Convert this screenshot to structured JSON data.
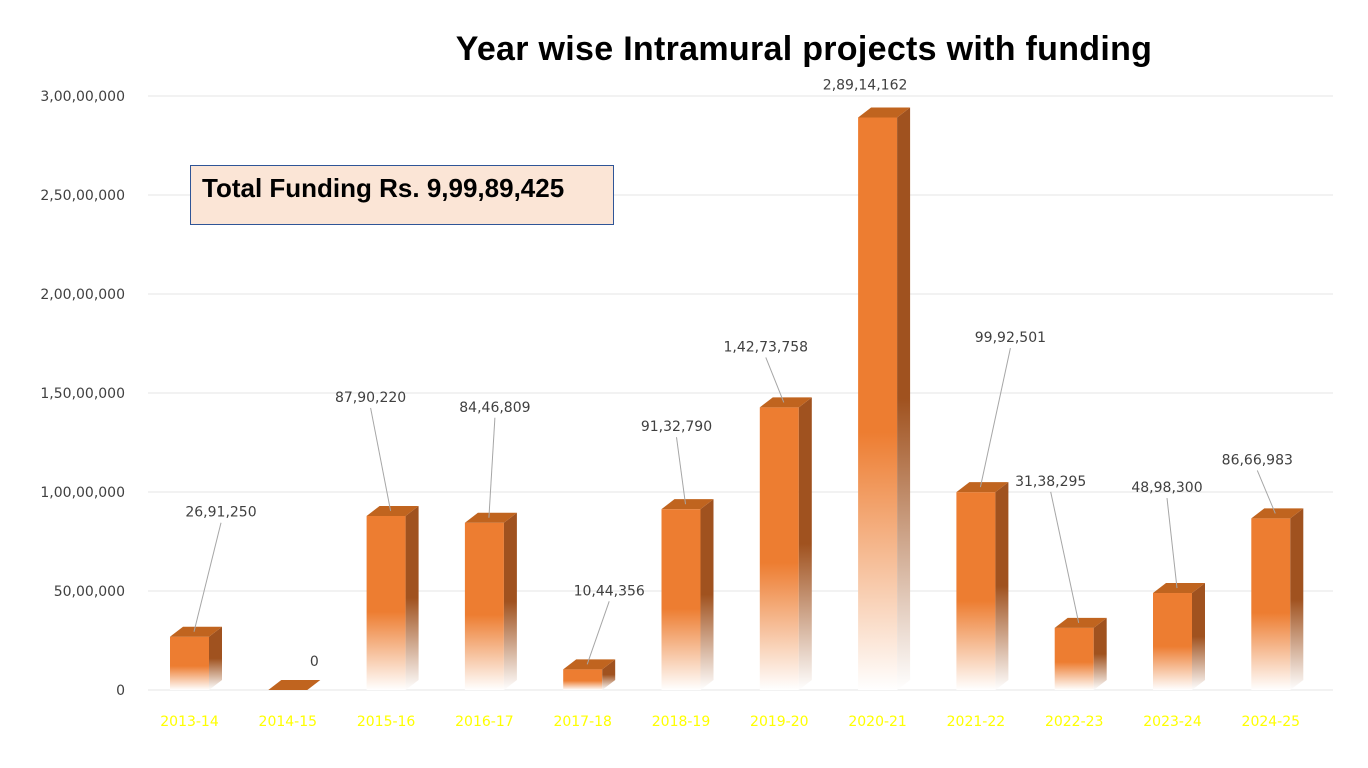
{
  "chart_data": {
    "type": "bar",
    "title": "Year wise Intramural projects with funding",
    "annotation": "Total Funding Rs. 9,99,89,425",
    "categories": [
      "2013-14",
      "2014-15",
      "2015-16",
      "2016-17",
      "2017-18",
      "2018-19",
      "2019-20",
      "2020-21",
      "2021-22",
      "2022-23",
      "2023-24",
      "2024-25"
    ],
    "values": [
      2691250,
      0,
      8790220,
      8446809,
      1044356,
      9132790,
      14273758,
      28914162,
      9992501,
      3138295,
      4898300,
      8666983
    ],
    "value_labels": [
      "26,91,250",
      "0",
      "87,90,220",
      "84,46,809",
      "10,44,356",
      "91,32,790",
      "1,42,73,758",
      "2,89,14,162",
      "99,92,501",
      "31,38,295",
      "48,98,300",
      "86,66,983"
    ],
    "yticks": [
      0,
      5000000,
      10000000,
      15000000,
      20000000,
      25000000,
      30000000
    ],
    "ytick_labels": [
      "0",
      "50,00,000",
      "1,00,00,000",
      "1,50,00,000",
      "2,00,00,000",
      "2,50,00,000",
      "3,00,00,000"
    ],
    "ylim": [
      0,
      30000000
    ],
    "xlabel": "",
    "ylabel": "",
    "grid": true,
    "style": "3d-column",
    "colors": {
      "bar_front": "#ed7d31",
      "bar_side": "#a0521f",
      "bar_top": "#c0641f",
      "x_tick_text": "#ffff00",
      "label_text": "#404040",
      "gridline": "#eeeeee",
      "annotation_fill": "#fbe5d6",
      "annotation_border": "#2f5597"
    }
  }
}
